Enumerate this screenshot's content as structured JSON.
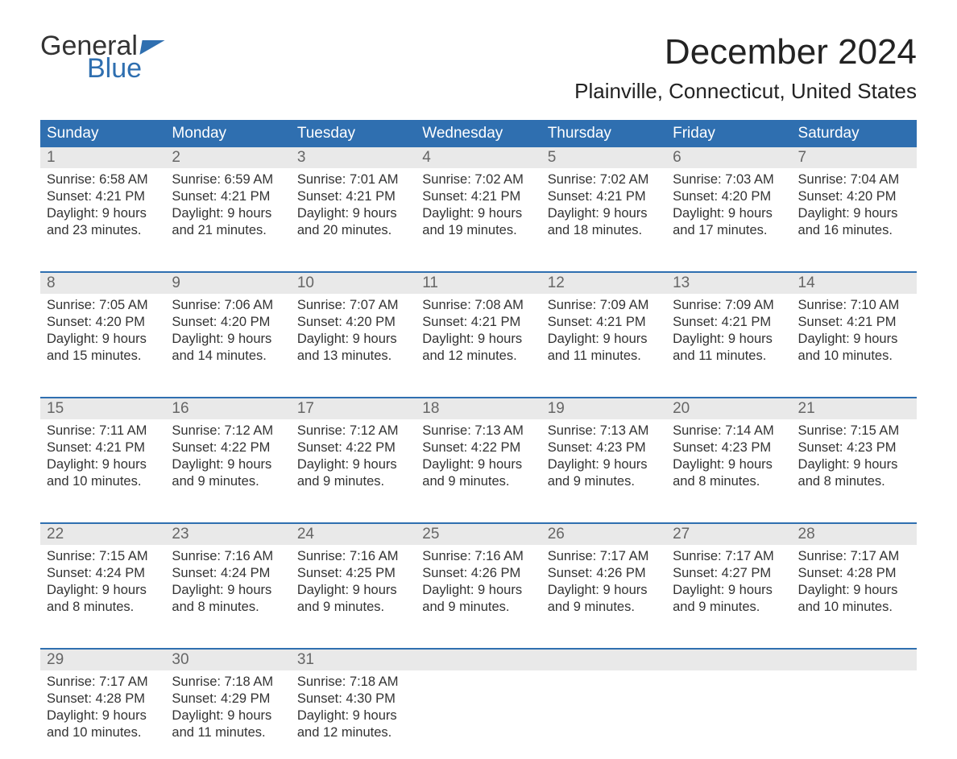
{
  "logo": {
    "text_general": "General",
    "text_blue": "Blue",
    "accent_color": "#2f6fb0",
    "text_color": "#333333"
  },
  "title": "December 2024",
  "location": "Plainville, Connecticut, United States",
  "colors": {
    "header_bg": "#2f6fb0",
    "header_text": "#ffffff",
    "daynum_bg": "#e9e9e9",
    "daynum_text": "#666666",
    "body_text": "#333333",
    "week_border": "#2f6fb0",
    "page_bg": "#ffffff"
  },
  "day_headers": [
    "Sunday",
    "Monday",
    "Tuesday",
    "Wednesday",
    "Thursday",
    "Friday",
    "Saturday"
  ],
  "weeks": [
    [
      {
        "day": "1",
        "sunrise": "6:58 AM",
        "sunset": "4:21 PM",
        "daylight": "9 hours and 23 minutes."
      },
      {
        "day": "2",
        "sunrise": "6:59 AM",
        "sunset": "4:21 PM",
        "daylight": "9 hours and 21 minutes."
      },
      {
        "day": "3",
        "sunrise": "7:01 AM",
        "sunset": "4:21 PM",
        "daylight": "9 hours and 20 minutes."
      },
      {
        "day": "4",
        "sunrise": "7:02 AM",
        "sunset": "4:21 PM",
        "daylight": "9 hours and 19 minutes."
      },
      {
        "day": "5",
        "sunrise": "7:02 AM",
        "sunset": "4:21 PM",
        "daylight": "9 hours and 18 minutes."
      },
      {
        "day": "6",
        "sunrise": "7:03 AM",
        "sunset": "4:20 PM",
        "daylight": "9 hours and 17 minutes."
      },
      {
        "day": "7",
        "sunrise": "7:04 AM",
        "sunset": "4:20 PM",
        "daylight": "9 hours and 16 minutes."
      }
    ],
    [
      {
        "day": "8",
        "sunrise": "7:05 AM",
        "sunset": "4:20 PM",
        "daylight": "9 hours and 15 minutes."
      },
      {
        "day": "9",
        "sunrise": "7:06 AM",
        "sunset": "4:20 PM",
        "daylight": "9 hours and 14 minutes."
      },
      {
        "day": "10",
        "sunrise": "7:07 AM",
        "sunset": "4:20 PM",
        "daylight": "9 hours and 13 minutes."
      },
      {
        "day": "11",
        "sunrise": "7:08 AM",
        "sunset": "4:21 PM",
        "daylight": "9 hours and 12 minutes."
      },
      {
        "day": "12",
        "sunrise": "7:09 AM",
        "sunset": "4:21 PM",
        "daylight": "9 hours and 11 minutes."
      },
      {
        "day": "13",
        "sunrise": "7:09 AM",
        "sunset": "4:21 PM",
        "daylight": "9 hours and 11 minutes."
      },
      {
        "day": "14",
        "sunrise": "7:10 AM",
        "sunset": "4:21 PM",
        "daylight": "9 hours and 10 minutes."
      }
    ],
    [
      {
        "day": "15",
        "sunrise": "7:11 AM",
        "sunset": "4:21 PM",
        "daylight": "9 hours and 10 minutes."
      },
      {
        "day": "16",
        "sunrise": "7:12 AM",
        "sunset": "4:22 PM",
        "daylight": "9 hours and 9 minutes."
      },
      {
        "day": "17",
        "sunrise": "7:12 AM",
        "sunset": "4:22 PM",
        "daylight": "9 hours and 9 minutes."
      },
      {
        "day": "18",
        "sunrise": "7:13 AM",
        "sunset": "4:22 PM",
        "daylight": "9 hours and 9 minutes."
      },
      {
        "day": "19",
        "sunrise": "7:13 AM",
        "sunset": "4:23 PM",
        "daylight": "9 hours and 9 minutes."
      },
      {
        "day": "20",
        "sunrise": "7:14 AM",
        "sunset": "4:23 PM",
        "daylight": "9 hours and 8 minutes."
      },
      {
        "day": "21",
        "sunrise": "7:15 AM",
        "sunset": "4:23 PM",
        "daylight": "9 hours and 8 minutes."
      }
    ],
    [
      {
        "day": "22",
        "sunrise": "7:15 AM",
        "sunset": "4:24 PM",
        "daylight": "9 hours and 8 minutes."
      },
      {
        "day": "23",
        "sunrise": "7:16 AM",
        "sunset": "4:24 PM",
        "daylight": "9 hours and 8 minutes."
      },
      {
        "day": "24",
        "sunrise": "7:16 AM",
        "sunset": "4:25 PM",
        "daylight": "9 hours and 9 minutes."
      },
      {
        "day": "25",
        "sunrise": "7:16 AM",
        "sunset": "4:26 PM",
        "daylight": "9 hours and 9 minutes."
      },
      {
        "day": "26",
        "sunrise": "7:17 AM",
        "sunset": "4:26 PM",
        "daylight": "9 hours and 9 minutes."
      },
      {
        "day": "27",
        "sunrise": "7:17 AM",
        "sunset": "4:27 PM",
        "daylight": "9 hours and 9 minutes."
      },
      {
        "day": "28",
        "sunrise": "7:17 AM",
        "sunset": "4:28 PM",
        "daylight": "9 hours and 10 minutes."
      }
    ],
    [
      {
        "day": "29",
        "sunrise": "7:17 AM",
        "sunset": "4:28 PM",
        "daylight": "9 hours and 10 minutes."
      },
      {
        "day": "30",
        "sunrise": "7:18 AM",
        "sunset": "4:29 PM",
        "daylight": "9 hours and 11 minutes."
      },
      {
        "day": "31",
        "sunrise": "7:18 AM",
        "sunset": "4:30 PM",
        "daylight": "9 hours and 12 minutes."
      },
      null,
      null,
      null,
      null
    ]
  ],
  "labels": {
    "sunrise": "Sunrise: ",
    "sunset": "Sunset: ",
    "daylight": "Daylight: "
  }
}
